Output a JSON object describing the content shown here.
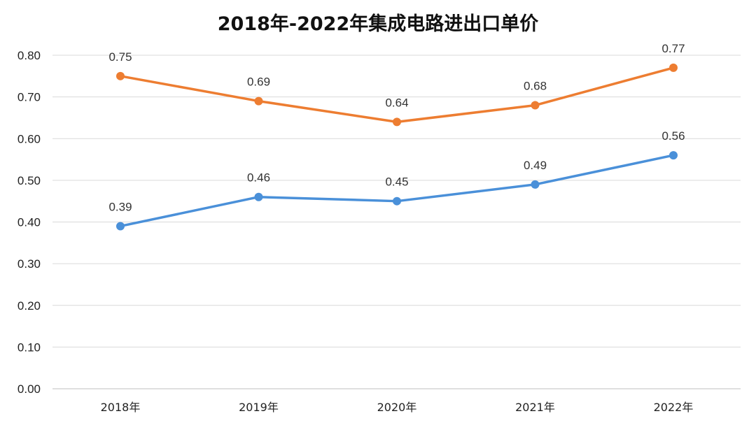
{
  "chart_data": {
    "type": "line",
    "title": "2018年-2022年集成电路进出口单价",
    "categories": [
      "2018年",
      "2019年",
      "2020年",
      "2021年",
      "2022年"
    ],
    "series": [
      {
        "values": [
          0.75,
          0.69,
          0.64,
          0.68,
          0.77
        ],
        "color": "#ed7d31"
      },
      {
        "values": [
          0.39,
          0.46,
          0.45,
          0.49,
          0.56
        ],
        "color": "#4a90d9"
      }
    ],
    "data_labels": [
      [
        "0.75",
        "0.69",
        "0.64",
        "0.68",
        "0.77"
      ],
      [
        "0.39",
        "0.46",
        "0.45",
        "0.49",
        "0.56"
      ]
    ],
    "y_ticks": [
      "0.00",
      "0.10",
      "0.20",
      "0.30",
      "0.40",
      "0.50",
      "0.60",
      "0.70",
      "0.80"
    ],
    "ylim": [
      0,
      0.8
    ],
    "grid": true,
    "legend": "none"
  },
  "colors": {
    "grid": "#d9d9d9",
    "axis": "#bfbfbf"
  }
}
